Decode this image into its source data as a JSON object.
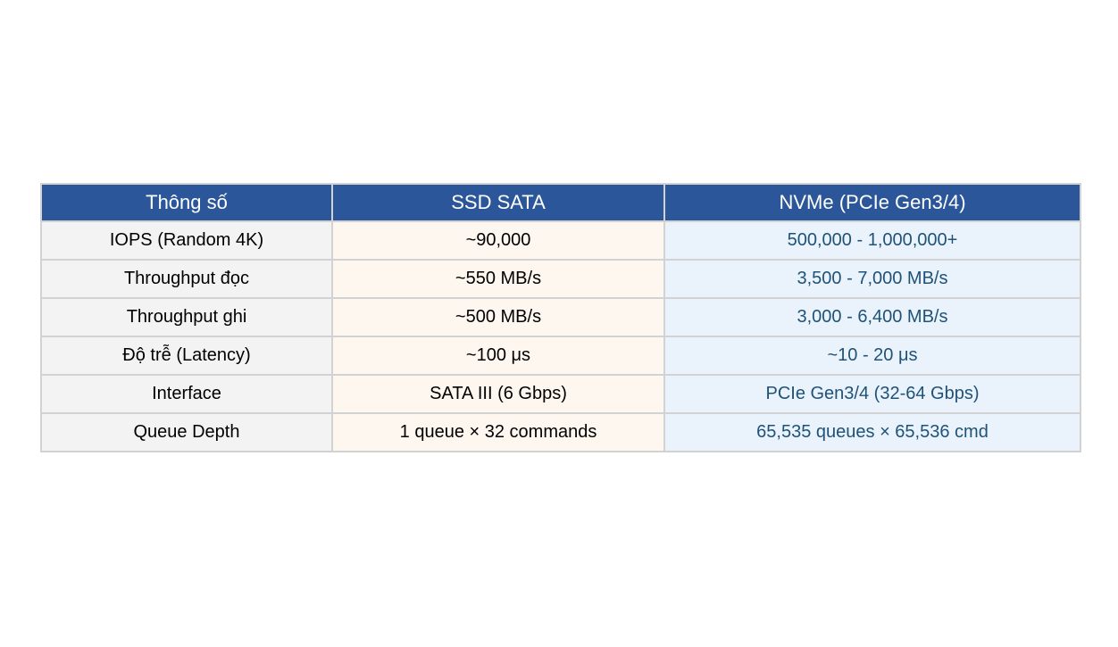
{
  "table": {
    "headers": [
      "Thông số",
      "SSD SATA",
      "NVMe (PCIe Gen3/4)"
    ],
    "rows": [
      [
        "IOPS (Random 4K)",
        "~90,000",
        "500,000 - 1,000,000+"
      ],
      [
        "Throughput đọc",
        "~550 MB/s",
        "3,500 - 7,000 MB/s"
      ],
      [
        "Throughput ghi",
        "~500 MB/s",
        "3,000 - 6,400 MB/s"
      ],
      [
        "Độ trễ (Latency)",
        "~100 μs",
        "~10 - 20 μs"
      ],
      [
        "Interface",
        "SATA III (6 Gbps)",
        "PCIe Gen3/4 (32-64 Gbps)"
      ],
      [
        "Queue Depth",
        "1 queue × 32 commands",
        "65,535 queues × 65,536 cmd"
      ]
    ]
  },
  "colors": {
    "header_bg": "#2b579a",
    "param_col_bg": "#f3f3f3",
    "sata_col_bg": "#fef7ef",
    "nvme_col_bg": "#eaf3fc",
    "nvme_text": "#1f5277"
  }
}
